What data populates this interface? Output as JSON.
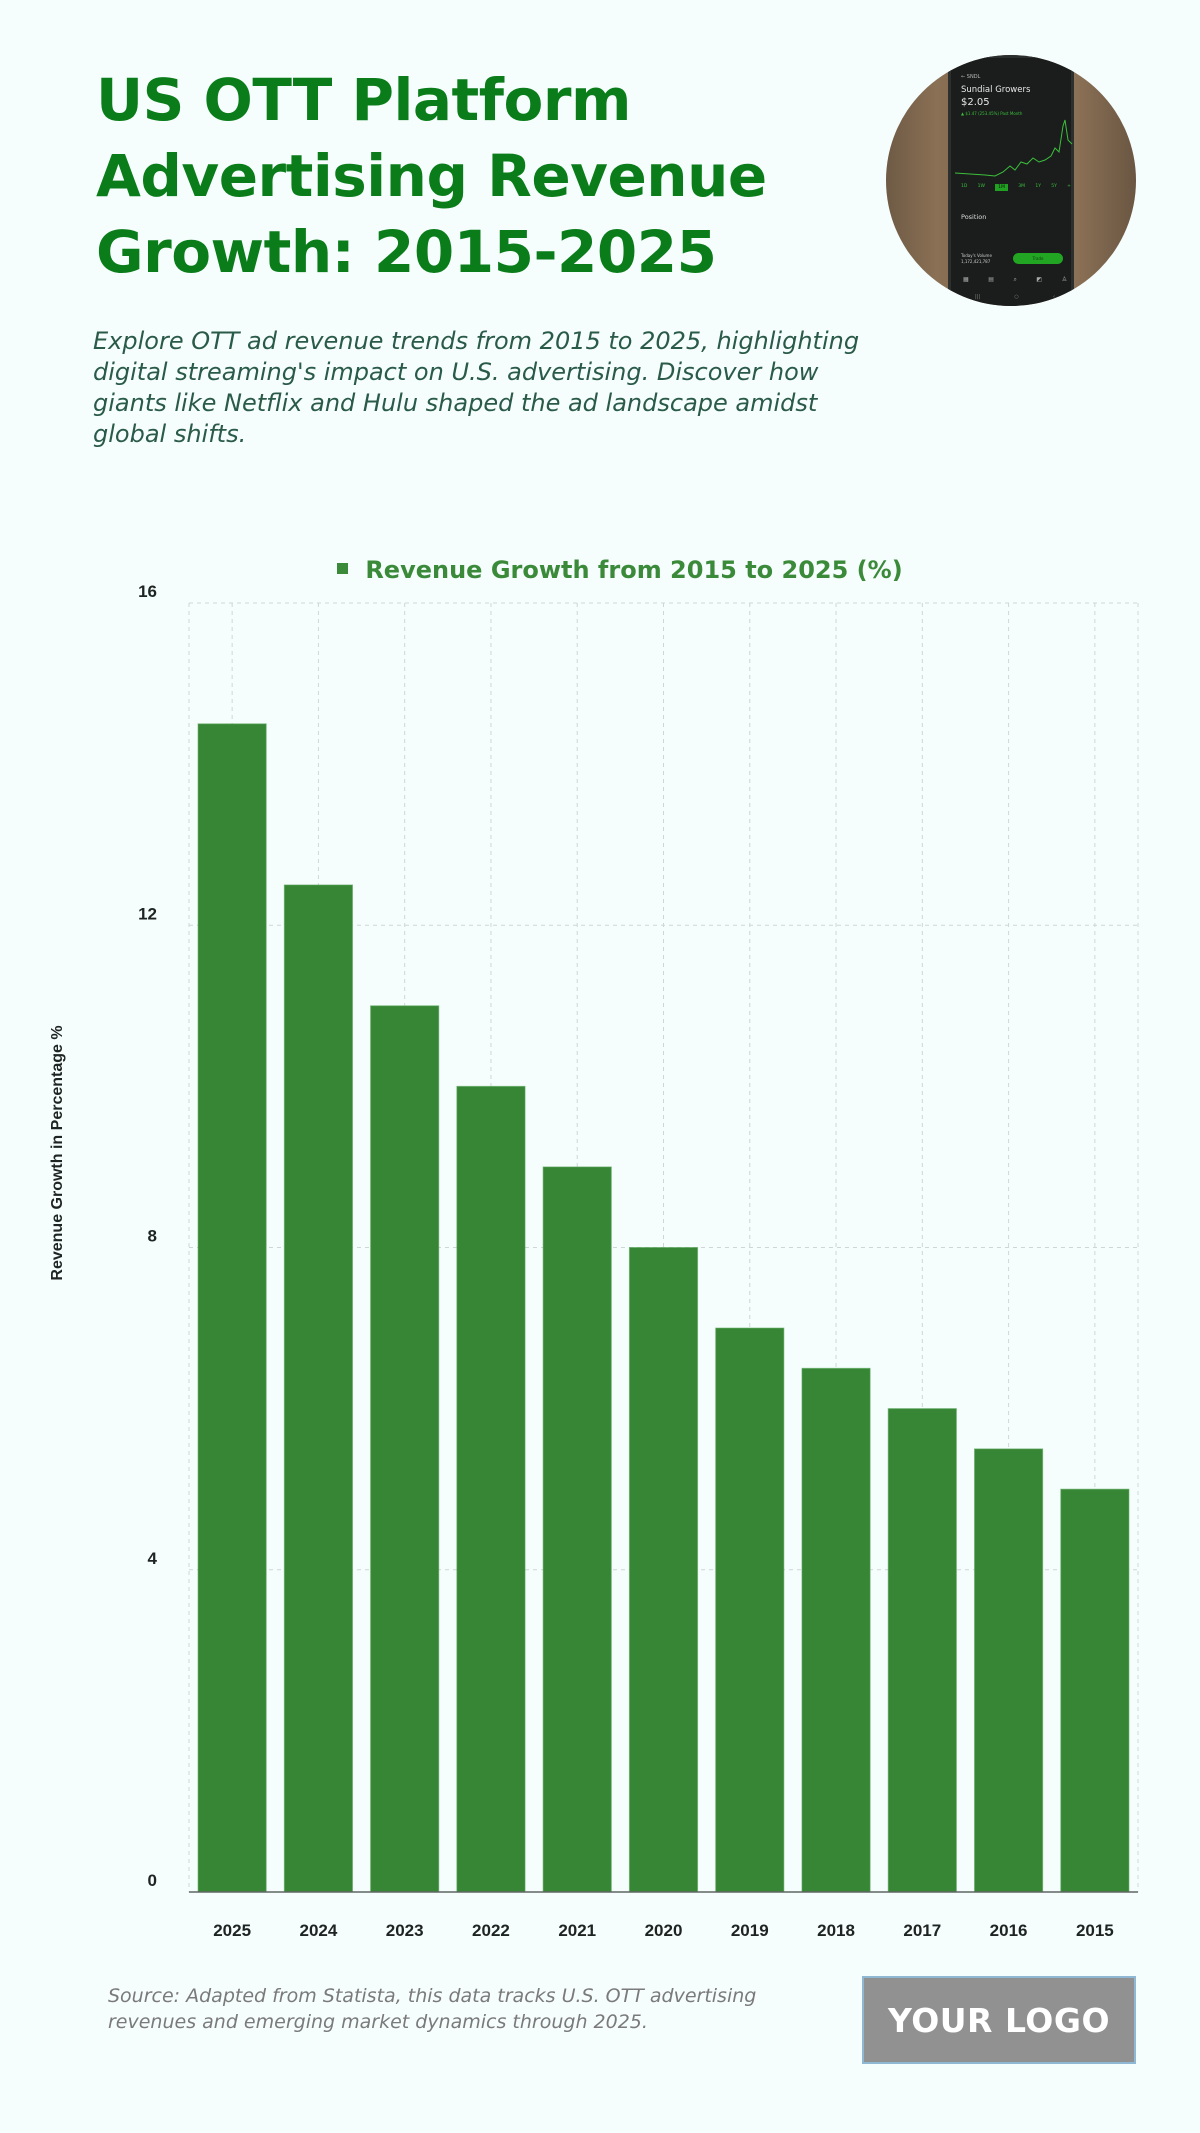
{
  "header": {
    "title": "US OTT Platform Advertising Revenue Growth: 2015-2025",
    "subtitle": "Explore OTT ad revenue trends from 2015 to 2025, highlighting digital streaming's impact on U.S. advertising. Discover how giants like Netflix and Hulu shaped the ad landscape amidst global shifts."
  },
  "photo": {
    "ticker": "SNDL",
    "stock_name": "Sundial Growers",
    "price": "$2.05",
    "change": "▲ $1.47 (253.45%) Past Month",
    "ranges": [
      "1D",
      "1W",
      "1M",
      "3M",
      "1Y",
      "5Y",
      "+"
    ],
    "active_range": "1M",
    "position_label": "Position",
    "volume_label": "Today's Volume",
    "volume_value": "1,172,421,787",
    "trade_label": "Trade"
  },
  "colors": {
    "title": "#0a7d1a",
    "bar": "#378636",
    "legend": "#3a8a3a",
    "background": "#f5fdfd"
  },
  "chart_data": {
    "type": "bar",
    "title": "",
    "legend": [
      "Revenue Growth from 2015 to 2025 (%)"
    ],
    "legend_position": "top-center",
    "xlabel": "",
    "ylabel": "Revenue Growth in Percentage %",
    "categories": [
      "2025",
      "2024",
      "2023",
      "2022",
      "2021",
      "2020",
      "2019",
      "2018",
      "2017",
      "2016",
      "2015"
    ],
    "series": [
      {
        "name": "Revenue Growth from 2015 to 2025 (%)",
        "values": [
          14.5,
          12.5,
          11.0,
          10.0,
          9.0,
          8.0,
          7.0,
          6.5,
          6.0,
          5.5,
          5.0
        ]
      }
    ],
    "ylim": [
      0,
      16
    ],
    "yticks": [
      0,
      4,
      8,
      12,
      16
    ],
    "grid": true
  },
  "footer": {
    "source": "Source: Adapted from Statista, this data tracks U.S. OTT advertising revenues and emerging market dynamics through 2025.",
    "logo_label": "YOUR LOGO"
  }
}
